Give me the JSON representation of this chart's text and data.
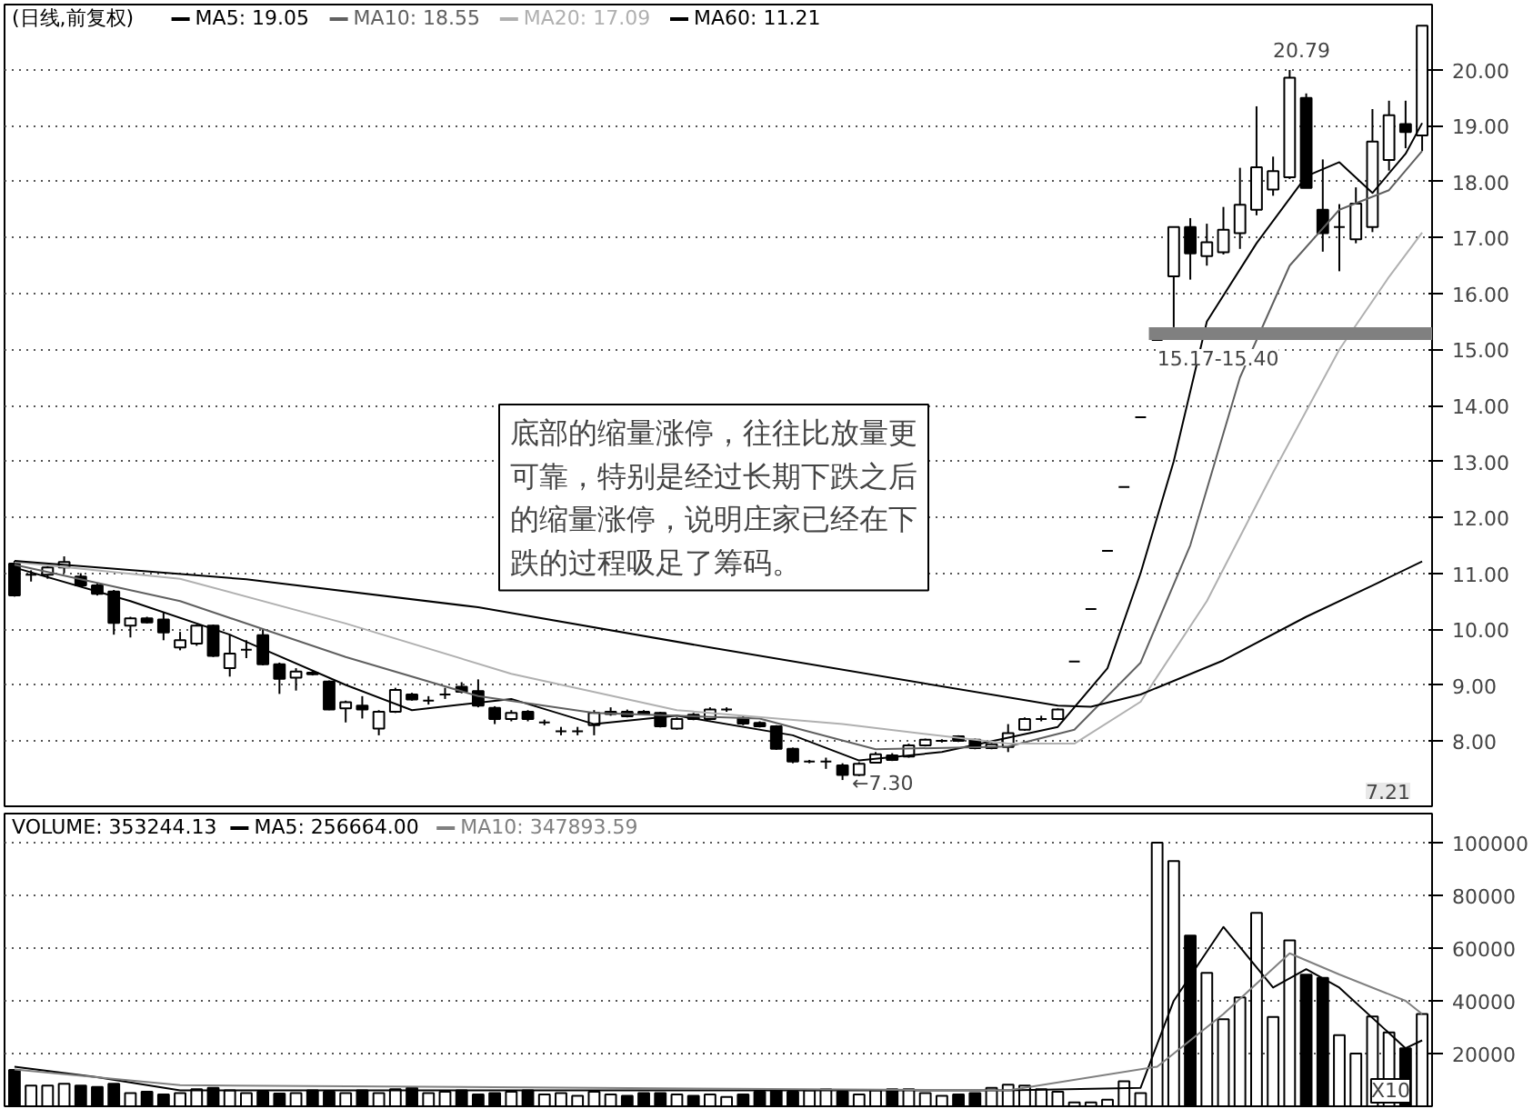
{
  "chart_data": [
    {
      "type": "candlestick",
      "title": "(日线,前复权)",
      "categories": [
        null,
        null,
        null,
        null,
        null,
        null,
        null,
        null,
        null,
        null,
        null,
        null,
        null,
        null,
        null,
        null,
        null,
        null,
        null,
        null,
        null,
        null,
        null,
        null,
        null,
        null,
        null,
        null,
        null,
        null,
        null,
        null,
        null,
        null,
        null,
        null,
        null,
        null,
        null,
        null,
        null,
        null,
        null,
        null,
        null,
        null,
        null,
        null,
        null,
        null,
        null,
        null,
        null,
        null,
        null,
        null,
        null,
        null,
        null,
        null,
        null,
        null,
        null,
        null,
        null,
        null,
        null,
        null,
        null,
        null,
        null,
        null,
        null,
        null,
        null,
        null,
        null,
        null,
        null,
        null,
        null,
        null,
        null,
        null,
        null,
        null
      ],
      "ohlc": [
        [
          11.17,
          11.22,
          10.58,
          10.6
        ],
        [
          10.97,
          11.05,
          10.85,
          10.97
        ],
        [
          10.97,
          11.12,
          10.9,
          11.1
        ],
        [
          11.1,
          11.3,
          11.0,
          11.2
        ],
        [
          10.94,
          11.0,
          10.75,
          10.78
        ],
        [
          10.78,
          10.82,
          10.6,
          10.63
        ],
        [
          10.67,
          10.7,
          9.9,
          10.11
        ],
        [
          10.06,
          10.22,
          9.85,
          10.19
        ],
        [
          10.19,
          10.22,
          10.1,
          10.12
        ],
        [
          10.17,
          10.3,
          9.8,
          9.94
        ],
        [
          9.67,
          9.95,
          9.62,
          9.8
        ],
        [
          9.74,
          10.08,
          9.7,
          10.06
        ],
        [
          10.06,
          10.08,
          9.5,
          9.52
        ],
        [
          9.3,
          9.9,
          9.15,
          9.56
        ],
        [
          9.63,
          9.8,
          9.48,
          9.63
        ],
        [
          9.89,
          10.0,
          9.35,
          9.37
        ],
        [
          9.37,
          9.4,
          8.84,
          9.11
        ],
        [
          9.13,
          9.3,
          8.9,
          9.24
        ],
        [
          9.22,
          9.25,
          9.17,
          9.19
        ],
        [
          9.06,
          9.08,
          8.55,
          8.56
        ],
        [
          8.58,
          8.72,
          8.33,
          8.69
        ],
        [
          8.63,
          8.8,
          8.4,
          8.56
        ],
        [
          8.22,
          8.55,
          8.1,
          8.52
        ],
        [
          8.52,
          8.95,
          8.5,
          8.91
        ],
        [
          8.83,
          8.86,
          8.72,
          8.74
        ],
        [
          8.72,
          8.8,
          8.65,
          8.72
        ],
        [
          8.83,
          8.95,
          8.75,
          8.83
        ],
        [
          8.97,
          9.05,
          8.85,
          8.88
        ],
        [
          8.89,
          9.1,
          8.6,
          8.63
        ],
        [
          8.59,
          8.62,
          8.3,
          8.39
        ],
        [
          8.39,
          8.55,
          8.35,
          8.5
        ],
        [
          8.52,
          8.55,
          8.35,
          8.39
        ],
        [
          8.33,
          8.38,
          8.28,
          8.33
        ],
        [
          8.17,
          8.25,
          8.1,
          8.17
        ],
        [
          8.17,
          8.25,
          8.1,
          8.17
        ],
        [
          8.28,
          8.55,
          8.1,
          8.5
        ],
        [
          8.48,
          8.6,
          8.45,
          8.52
        ],
        [
          8.52,
          8.56,
          8.42,
          8.44
        ],
        [
          8.52,
          8.55,
          8.46,
          8.48
        ],
        [
          8.5,
          8.52,
          8.24,
          8.26
        ],
        [
          8.22,
          8.42,
          8.2,
          8.39
        ],
        [
          8.47,
          8.5,
          8.37,
          8.39
        ],
        [
          8.39,
          8.6,
          8.37,
          8.56
        ],
        [
          8.56,
          8.6,
          8.52,
          8.56
        ],
        [
          8.41,
          8.44,
          8.28,
          8.31
        ],
        [
          8.32,
          8.35,
          8.24,
          8.26
        ],
        [
          8.26,
          8.28,
          7.84,
          7.86
        ],
        [
          7.86,
          7.88,
          7.6,
          7.63
        ],
        [
          7.63,
          7.66,
          7.6,
          7.63
        ],
        [
          7.63,
          7.7,
          7.5,
          7.63
        ],
        [
          7.56,
          7.6,
          7.3,
          7.39
        ],
        [
          7.39,
          7.62,
          7.37,
          7.59
        ],
        [
          7.61,
          7.8,
          7.6,
          7.76
        ],
        [
          7.74,
          7.78,
          7.64,
          7.66
        ],
        [
          7.72,
          7.95,
          7.7,
          7.92
        ],
        [
          7.92,
          8.04,
          7.9,
          8.02
        ],
        [
          8.0,
          8.03,
          7.97,
          8.0
        ],
        [
          8.08,
          8.1,
          7.98,
          8.0
        ],
        [
          8.02,
          8.04,
          7.85,
          7.87
        ],
        [
          7.87,
          7.96,
          7.85,
          7.94
        ],
        [
          7.89,
          8.3,
          7.8,
          8.14
        ],
        [
          8.2,
          8.42,
          8.18,
          8.39
        ],
        [
          8.39,
          8.45,
          8.35,
          8.39
        ],
        [
          8.39,
          8.58,
          8.37,
          8.56
        ],
        [
          9.42,
          9.42,
          9.42,
          9.42
        ],
        [
          10.36,
          10.36,
          10.36,
          10.36
        ],
        [
          11.4,
          11.4,
          11.4,
          11.4
        ],
        [
          12.54,
          12.54,
          12.54,
          12.54
        ],
        [
          13.79,
          13.79,
          13.79,
          13.79
        ],
        [
          15.17,
          15.17,
          15.17,
          15.17
        ],
        [
          16.31,
          17.19,
          15.4,
          17.19
        ],
        [
          17.19,
          17.35,
          16.25,
          16.72
        ],
        [
          16.67,
          17.25,
          16.5,
          16.92
        ],
        [
          16.74,
          17.55,
          16.7,
          17.14
        ],
        [
          17.08,
          18.25,
          16.8,
          17.59
        ],
        [
          17.5,
          19.35,
          17.4,
          18.26
        ],
        [
          17.86,
          18.45,
          17.75,
          18.19
        ],
        [
          18.08,
          20.0,
          18.05,
          19.86
        ],
        [
          19.5,
          19.58,
          17.89,
          17.89
        ],
        [
          17.5,
          18.4,
          16.75,
          17.08
        ],
        [
          17.19,
          17.6,
          16.4,
          17.19
        ],
        [
          16.97,
          17.9,
          16.9,
          17.61
        ],
        [
          17.19,
          19.3,
          17.1,
          18.72
        ],
        [
          18.39,
          19.45,
          18.2,
          19.19
        ],
        [
          19.03,
          19.45,
          18.6,
          18.89
        ],
        [
          18.83,
          20.79,
          18.55,
          20.79
        ]
      ],
      "series": [
        {
          "name": "MA5: 19.05",
          "type": "line",
          "color": "#000000",
          "values": [
            11.1,
            null,
            null,
            null,
            null,
            null,
            null,
            10.5,
            null,
            null,
            null,
            null,
            null,
            9.9,
            null,
            null,
            null,
            null,
            null,
            null,
            9.0,
            null,
            null,
            null,
            8.55,
            null,
            null,
            null,
            null,
            null,
            8.75,
            null,
            null,
            null,
            null,
            8.3,
            null,
            null,
            null,
            null,
            8.45,
            null,
            null,
            null,
            null,
            null,
            null,
            8.1,
            null,
            null,
            null,
            7.65,
            null,
            null,
            null,
            null,
            7.8,
            null,
            null,
            null,
            null,
            null,
            null,
            8.25,
            null,
            null,
            9.3,
            null,
            11.0,
            null,
            13.0,
            null,
            15.5,
            null,
            null,
            16.9,
            null,
            null,
            18.1,
            null,
            18.35,
            null,
            17.8,
            null,
            18.5,
            19.05
          ]
        },
        {
          "name": "MA10: 18.55",
          "type": "line",
          "color": "#606060",
          "values": [
            11.15,
            null,
            null,
            null,
            null,
            null,
            null,
            null,
            null,
            null,
            10.5,
            null,
            null,
            null,
            null,
            null,
            null,
            null,
            null,
            null,
            9.5,
            null,
            null,
            null,
            null,
            null,
            null,
            null,
            8.8,
            null,
            null,
            null,
            null,
            null,
            null,
            8.5,
            null,
            null,
            null,
            null,
            null,
            null,
            null,
            null,
            null,
            8.4,
            null,
            null,
            null,
            null,
            null,
            null,
            7.85,
            null,
            null,
            null,
            null,
            null,
            null,
            null,
            7.9,
            null,
            null,
            null,
            8.2,
            null,
            null,
            null,
            9.4,
            null,
            null,
            11.5,
            null,
            null,
            14.5,
            null,
            null,
            16.5,
            null,
            null,
            17.5,
            null,
            null,
            17.85,
            null,
            18.55
          ]
        },
        {
          "name": "MA20: 17.09",
          "type": "line",
          "color": "#b0b0b0",
          "values": [
            11.2,
            null,
            null,
            null,
            null,
            null,
            null,
            null,
            null,
            null,
            10.9,
            null,
            null,
            null,
            null,
            null,
            null,
            null,
            null,
            null,
            10.1,
            null,
            null,
            null,
            null,
            null,
            null,
            null,
            null,
            null,
            9.2,
            null,
            null,
            null,
            null,
            null,
            null,
            null,
            null,
            null,
            8.55,
            null,
            null,
            null,
            null,
            null,
            null,
            null,
            null,
            null,
            8.3,
            null,
            null,
            null,
            null,
            null,
            null,
            null,
            null,
            null,
            7.95,
            null,
            null,
            null,
            7.95,
            null,
            null,
            null,
            8.7,
            null,
            null,
            null,
            10.5,
            null,
            null,
            null,
            12.8,
            null,
            null,
            null,
            15.0,
            null,
            null,
            16.3,
            null,
            17.09
          ]
        },
        {
          "name": "MA60: 11.21",
          "type": "line",
          "color": "#000000",
          "values": [
            11.22,
            null,
            null,
            null,
            null,
            null,
            null,
            null,
            null,
            null,
            null,
            null,
            null,
            null,
            10.89,
            null,
            null,
            null,
            null,
            null,
            null,
            null,
            null,
            null,
            null,
            null,
            null,
            null,
            10.39,
            null,
            null,
            null,
            null,
            null,
            null,
            null,
            null,
            null,
            null,
            null,
            null,
            null,
            9.67,
            null,
            null,
            null,
            null,
            null,
            null,
            null,
            null,
            null,
            null,
            null,
            null,
            null,
            null,
            null,
            null,
            null,
            null,
            null,
            null,
            8.63,
            null,
            8.61,
            null,
            null,
            8.83,
            null,
            null,
            null,
            null,
            9.44,
            null,
            null,
            null,
            null,
            10.22,
            null,
            null,
            null,
            10.78,
            null,
            null,
            11.21
          ]
        }
      ],
      "ylim": [
        6.83,
        21.17
      ],
      "yticks": [
        {
          "value": 8,
          "label": "8.00"
        },
        {
          "value": 9,
          "label": "9.00"
        },
        {
          "value": 10,
          "label": "10.00"
        },
        {
          "value": 11,
          "label": "11.00"
        },
        {
          "value": 12,
          "label": "12.00"
        },
        {
          "value": 13,
          "label": "13.00"
        },
        {
          "value": 14,
          "label": "14.00"
        },
        {
          "value": 15,
          "label": "15.00"
        },
        {
          "value": 16,
          "label": "16.00"
        },
        {
          "value": 17,
          "label": "17.00"
        },
        {
          "value": 18,
          "label": "18.00"
        },
        {
          "value": 19,
          "label": "19.00"
        },
        {
          "value": 20,
          "label": "20.00"
        }
      ],
      "bands": [
        {
          "axis": "y",
          "from": 15.17,
          "to": 15.4,
          "label": "15.17-15.40",
          "color": "#808080"
        }
      ],
      "annotations": [
        "底部的缩量涨停，往往比放量更可靠，特别是经过长期下跌之后的缩量涨停，说明庄家已经在下跌的过程吸足了筹码。",
        "7.21",
        "20.79",
        "←7.30"
      ],
      "grid": "y",
      "tick_labels": "y",
      "legend": "top left"
    },
    {
      "type": "bar",
      "title": "VOLUME: 353244.13",
      "categories": [
        null,
        null,
        null,
        null,
        null,
        null,
        null,
        null,
        null,
        null,
        null,
        null,
        null,
        null,
        null,
        null,
        null,
        null,
        null,
        null,
        null,
        null,
        null,
        null,
        null,
        null,
        null,
        null,
        null,
        null,
        null,
        null,
        null,
        null,
        null,
        null,
        null,
        null,
        null,
        null,
        null,
        null,
        null,
        null,
        null,
        null,
        null,
        null,
        null,
        null,
        null,
        null,
        null,
        null,
        null,
        null,
        null,
        null,
        null,
        null,
        null,
        null,
        null,
        null,
        null,
        null,
        null,
        null,
        null,
        null,
        null,
        null,
        null,
        null,
        null,
        null,
        null,
        null,
        null,
        null,
        null,
        null,
        null,
        null,
        null,
        null
      ],
      "series": [
        {
          "type": "bar",
          "values": [
            13800,
            7800,
            7800,
            8500,
            7800,
            7300,
            8500,
            5000,
            5500,
            4500,
            5000,
            6500,
            7000,
            6000,
            5000,
            5500,
            4800,
            5000,
            6000,
            5500,
            5000,
            6000,
            5000,
            6500,
            7000,
            5000,
            5500,
            6000,
            4500,
            5000,
            5500,
            6000,
            4500,
            5000,
            4000,
            5500,
            4500,
            4000,
            5000,
            5000,
            4500,
            4000,
            4500,
            3500,
            4500,
            5500,
            6000,
            5500,
            6000,
            6500,
            5500,
            4500,
            6000,
            6500,
            6500,
            5000,
            4000,
            4500,
            5000,
            7000,
            8200,
            7800,
            6500,
            5500,
            1500,
            1500,
            2500,
            9500,
            5000,
            100000,
            93000,
            64700,
            50600,
            33000,
            41300,
            73300,
            33900,
            62900,
            49900,
            48700,
            27000,
            20000,
            34000,
            28000,
            22000,
            35000
          ],
          "colors": [
            "#000000",
            "#ffffff",
            "#ffffff",
            "#ffffff",
            "#000000",
            "#000000",
            "#000000",
            "#ffffff",
            "#000000",
            "#000000",
            "#ffffff",
            "#ffffff",
            "#000000",
            "#ffffff",
            "#ffffff",
            "#000000",
            "#000000",
            "#ffffff",
            "#000000",
            "#000000",
            "#ffffff",
            "#000000",
            "#ffffff",
            "#ffffff",
            "#000000",
            "#ffffff",
            "#ffffff",
            "#000000",
            "#000000",
            "#000000",
            "#ffffff",
            "#000000",
            "#ffffff",
            "#ffffff",
            "#ffffff",
            "#ffffff",
            "#ffffff",
            "#000000",
            "#000000",
            "#000000",
            "#ffffff",
            "#000000",
            "#ffffff",
            "#ffffff",
            "#000000",
            "#000000",
            "#000000",
            "#000000",
            "#ffffff",
            "#ffffff",
            "#000000",
            "#ffffff",
            "#ffffff",
            "#000000",
            "#ffffff",
            "#ffffff",
            "#ffffff",
            "#000000",
            "#000000",
            "#ffffff",
            "#ffffff",
            "#ffffff",
            "#ffffff",
            "#ffffff",
            "#ffffff",
            "#ffffff",
            "#ffffff",
            "#ffffff",
            "#ffffff",
            "#ffffff",
            "#ffffff",
            "#000000",
            "#ffffff",
            "#ffffff",
            "#ffffff",
            "#ffffff",
            "#ffffff",
            "#ffffff",
            "#000000",
            "#000000",
            "#ffffff",
            "#ffffff",
            "#ffffff",
            "#ffffff",
            "#000000",
            "#ffffff"
          ]
        },
        {
          "name": "MA5: 256664.00",
          "type": "line",
          "color": "#000000",
          "values": [
            15000,
            null,
            null,
            null,
            null,
            11000,
            null,
            null,
            null,
            null,
            6000,
            null,
            null,
            null,
            null,
            null,
            null,
            null,
            null,
            null,
            null,
            null,
            null,
            null,
            null,
            null,
            null,
            null,
            null,
            null,
            null,
            null,
            null,
            null,
            null,
            null,
            null,
            null,
            null,
            null,
            null,
            null,
            null,
            null,
            null,
            null,
            null,
            null,
            null,
            null,
            null,
            null,
            null,
            null,
            null,
            null,
            null,
            null,
            null,
            null,
            6000,
            null,
            null,
            null,
            null,
            null,
            null,
            null,
            7000,
            null,
            40000,
            null,
            null,
            68000,
            null,
            null,
            45000,
            null,
            52000,
            null,
            45000,
            null,
            null,
            null,
            22000,
            25000
          ]
        },
        {
          "name": "MA10: 347893.59",
          "type": "line",
          "color": "#808080",
          "values": [
            14000,
            null,
            null,
            null,
            null,
            null,
            null,
            null,
            null,
            null,
            8000,
            null,
            null,
            null,
            null,
            null,
            null,
            null,
            null,
            null,
            null,
            null,
            null,
            null,
            null,
            null,
            null,
            null,
            null,
            null,
            null,
            null,
            null,
            null,
            null,
            null,
            null,
            null,
            null,
            null,
            null,
            null,
            null,
            null,
            null,
            null,
            null,
            null,
            null,
            null,
            null,
            null,
            null,
            null,
            null,
            null,
            null,
            null,
            null,
            null,
            6000,
            null,
            null,
            null,
            null,
            null,
            null,
            null,
            null,
            15000,
            null,
            null,
            null,
            35000,
            null,
            null,
            null,
            58000,
            null,
            null,
            50000,
            null,
            null,
            null,
            40000,
            35000
          ]
        }
      ],
      "ylim": [
        0,
        111000
      ],
      "yticks": [
        20000,
        40000,
        60000,
        80000,
        100000
      ],
      "annotations": [
        "X10"
      ],
      "grid": "y",
      "tick_labels": "y",
      "legend": "top left"
    }
  ]
}
